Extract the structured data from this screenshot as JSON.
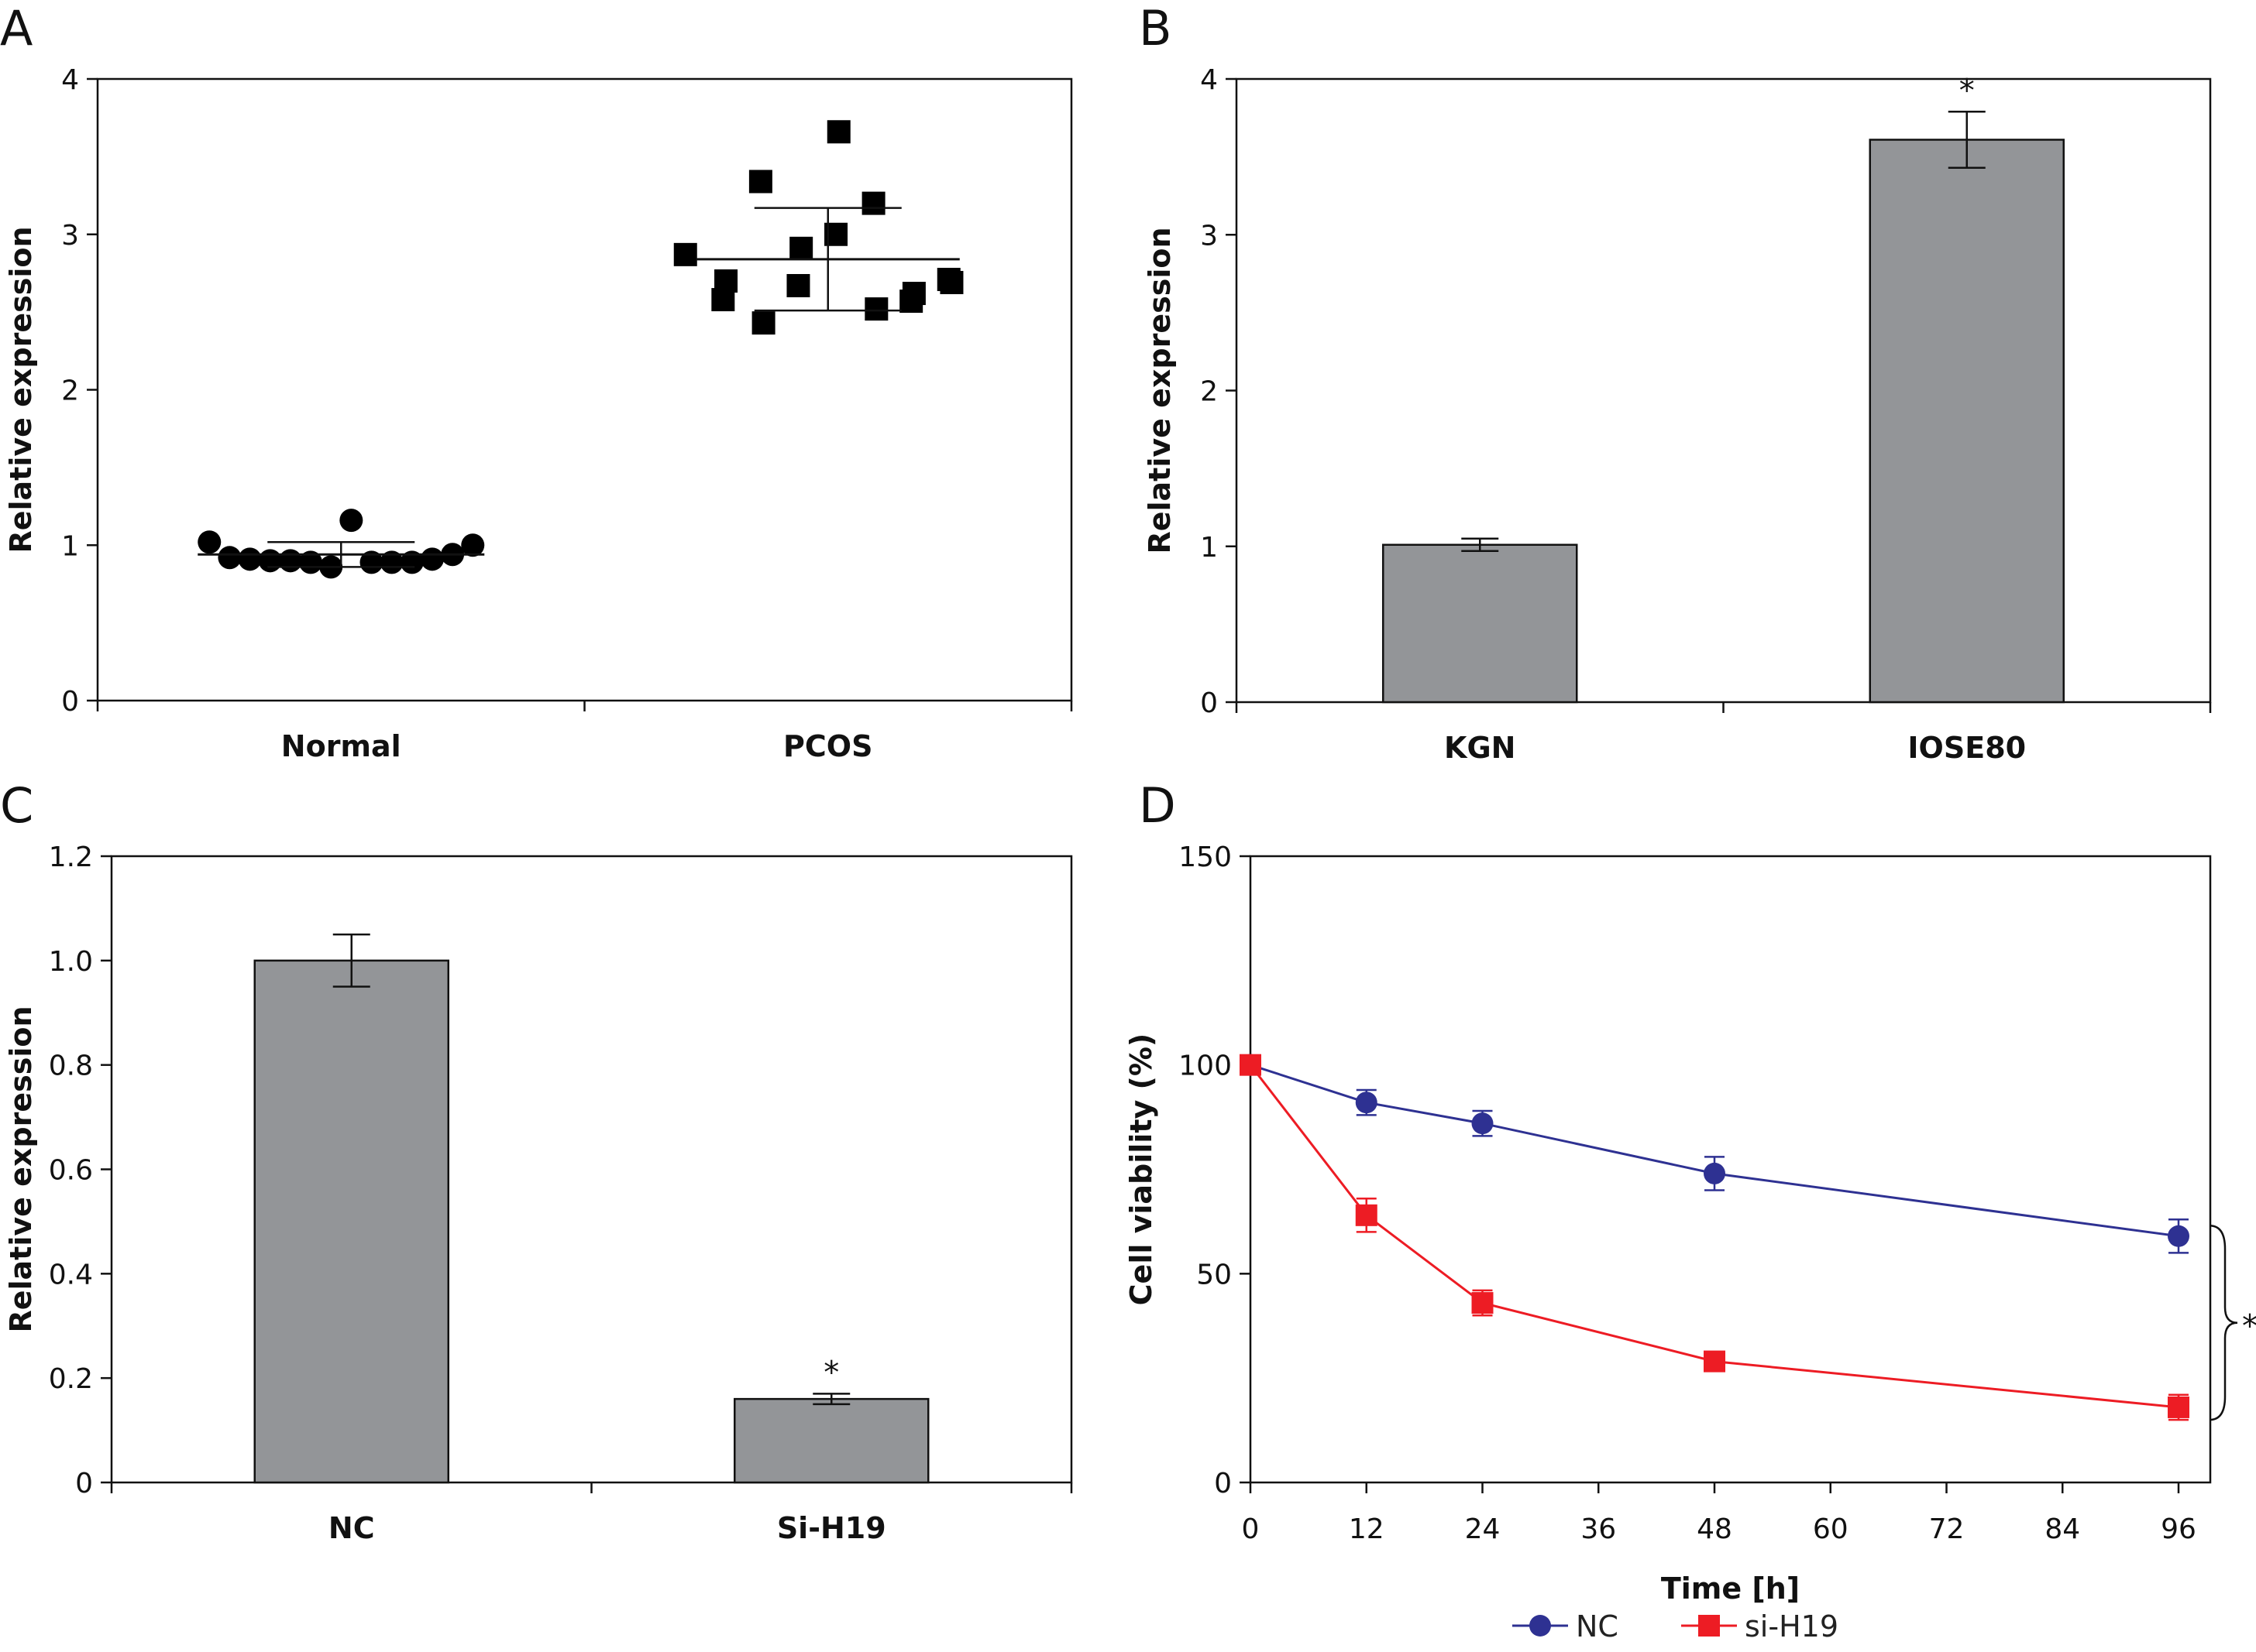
{
  "chart_data": [
    {
      "panel": "A",
      "type": "scatter",
      "ylabel": "Relative expression",
      "xlabel": "",
      "ylim": [
        0,
        4
      ],
      "yticks": [
        "0",
        "1",
        "2",
        "3",
        "4"
      ],
      "categories": [
        "Normal",
        "PCOS"
      ],
      "groups": [
        {
          "category": "Normal",
          "marker": "circle",
          "values": [
            1.02,
            0.92,
            0.91,
            0.9,
            0.9,
            0.89,
            0.86,
            1.16,
            0.89,
            0.89,
            0.89,
            0.91,
            0.94,
            1.0
          ],
          "mean": 0.94,
          "sd": 0.08
        },
        {
          "category": "PCOS",
          "marker": "square",
          "values": [
            2.87,
            2.7,
            2.58,
            2.43,
            3.34,
            2.91,
            2.67,
            3.66,
            3.0,
            2.52,
            3.2,
            2.62,
            2.57,
            2.69,
            2.71
          ],
          "mean": 2.84,
          "sd": 0.33
        }
      ]
    },
    {
      "panel": "B",
      "type": "bar",
      "ylabel": "Relative expression",
      "xlabel": "",
      "ylim": [
        0,
        4
      ],
      "yticks": [
        "0",
        "1",
        "2",
        "3",
        "4"
      ],
      "categories": [
        "KGN",
        "IOSE80"
      ],
      "values": [
        1.01,
        3.61
      ],
      "errors": [
        0.04,
        0.18
      ],
      "significance": [
        "",
        "*"
      ]
    },
    {
      "panel": "C",
      "type": "bar",
      "ylabel": "Relative expression",
      "xlabel": "",
      "ylim": [
        0,
        1.2
      ],
      "yticks": [
        "0",
        "0.2",
        "0.4",
        "0.6",
        "0.8",
        "1.0",
        "1.2"
      ],
      "categories": [
        "NC",
        "Si-H19"
      ],
      "values": [
        1.0,
        0.16
      ],
      "errors": [
        0.05,
        0.01
      ],
      "significance": [
        "",
        "*"
      ]
    },
    {
      "panel": "D",
      "type": "line",
      "ylabel": "Cell viability (%)",
      "xlabel": "Time [h]",
      "xlim": [
        0,
        96
      ],
      "ylim": [
        0,
        150
      ],
      "xticks": [
        "0",
        "12",
        "24",
        "36",
        "48",
        "60",
        "72",
        "84",
        "96"
      ],
      "yticks": [
        "0",
        "50",
        "100",
        "150"
      ],
      "x": [
        0,
        12,
        24,
        48,
        96
      ],
      "series": [
        {
          "name": "NC",
          "color": "#2e3192",
          "marker": "circle",
          "values": [
            100,
            91,
            86,
            74,
            59
          ],
          "errors": [
            0,
            3,
            3,
            4,
            4
          ]
        },
        {
          "name": "si-H19",
          "color": "#ed1c24",
          "marker": "square",
          "values": [
            100,
            64,
            43,
            29,
            18
          ],
          "errors": [
            0,
            4,
            3,
            2,
            3
          ]
        }
      ],
      "legend_position": "bottom",
      "annotation": "*"
    }
  ]
}
